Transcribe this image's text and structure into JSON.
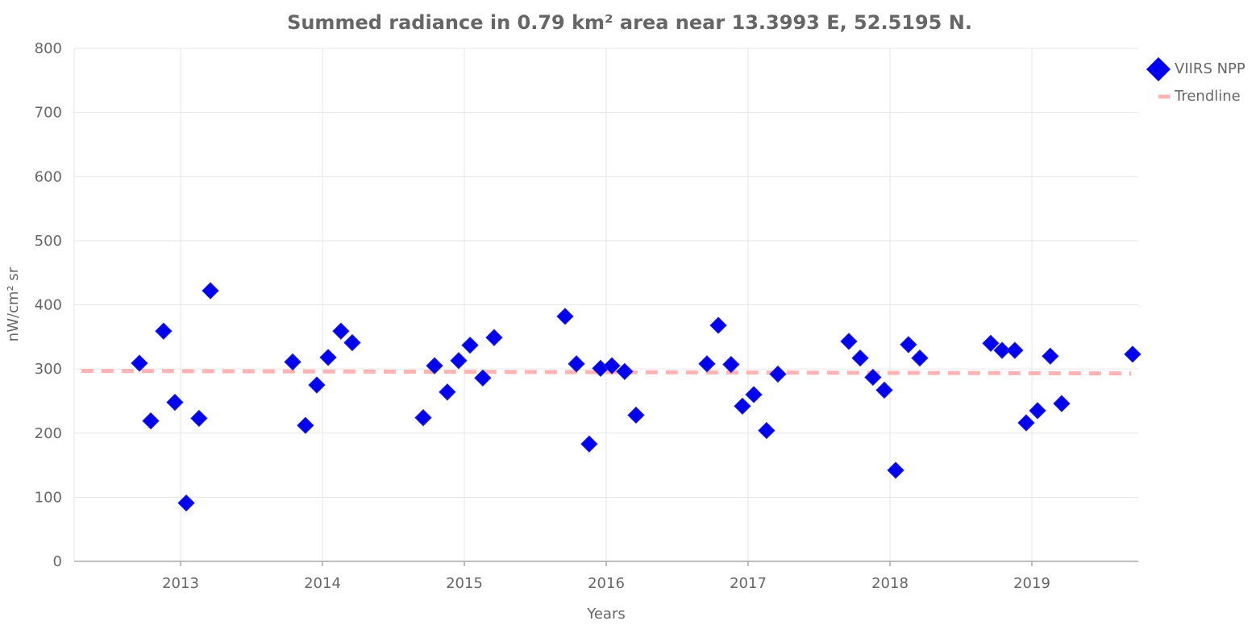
{
  "chart_data": {
    "type": "scatter",
    "title": "Summed radiance in 0.79 km² area near 13.3993 E, 52.5195 N.",
    "xlabel": "Years",
    "ylabel": "nW/cm² sr",
    "xlim": [
      2012.25,
      2019.75
    ],
    "ylim": [
      0,
      800
    ],
    "x_ticks": [
      2013,
      2014,
      2015,
      2016,
      2017,
      2018,
      2019
    ],
    "y_ticks": [
      0,
      100,
      200,
      300,
      400,
      500,
      600,
      700,
      800
    ],
    "grid": true,
    "legend_position": "top-right",
    "series": [
      {
        "name": "VIIRS NPP",
        "kind": "markers",
        "marker": "diamond",
        "color": "#0000ee",
        "x": [
          2012.71,
          2012.79,
          2012.88,
          2012.96,
          2013.04,
          2013.13,
          2013.21,
          2013.79,
          2013.88,
          2013.96,
          2014.04,
          2014.13,
          2014.21,
          2014.71,
          2014.79,
          2014.88,
          2014.96,
          2015.04,
          2015.13,
          2015.21,
          2015.71,
          2015.79,
          2015.88,
          2015.96,
          2016.04,
          2016.13,
          2016.21,
          2016.71,
          2016.79,
          2016.88,
          2016.96,
          2017.04,
          2017.13,
          2017.21,
          2017.71,
          2017.79,
          2017.88,
          2017.96,
          2018.04,
          2018.13,
          2018.21,
          2018.71,
          2018.79,
          2018.88,
          2018.96,
          2019.04,
          2019.13,
          2019.21,
          2019.71
        ],
        "y": [
          309,
          219,
          359,
          248,
          91,
          223,
          422,
          311,
          212,
          275,
          318,
          359,
          341,
          224,
          305,
          264,
          313,
          337,
          286,
          349,
          382,
          308,
          183,
          301,
          305,
          296,
          228,
          308,
          368,
          307,
          242,
          260,
          204,
          292,
          343,
          317,
          287,
          267,
          142,
          338,
          317,
          340,
          329,
          329,
          216,
          235,
          320,
          246,
          323
        ]
      },
      {
        "name": "Trendline",
        "kind": "line",
        "color": "#ffb3b3",
        "x": [
          2012.3,
          2019.7
        ],
        "y": [
          297,
          293
        ]
      }
    ]
  }
}
